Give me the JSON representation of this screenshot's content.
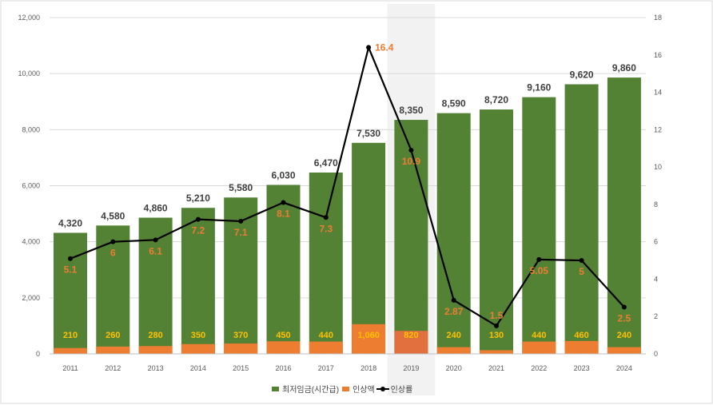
{
  "chart_data": {
    "type": "bar+line",
    "categories": [
      "2011",
      "2012",
      "2013",
      "2014",
      "2015",
      "2016",
      "2017",
      "2018",
      "2019",
      "2020",
      "2021",
      "2022",
      "2023",
      "2024"
    ],
    "series": [
      {
        "name": "최저임금(시간급)",
        "type": "bar",
        "axis": "left",
        "color": "#548235",
        "values": [
          4320,
          4580,
          4860,
          5210,
          5580,
          6030,
          6470,
          7530,
          8350,
          8590,
          8720,
          9160,
          9620,
          9860
        ]
      },
      {
        "name": "인상액",
        "type": "bar",
        "axis": "left",
        "color": "#ED7D31",
        "values": [
          210,
          260,
          280,
          350,
          370,
          450,
          440,
          1060,
          820,
          240,
          130,
          440,
          460,
          240
        ]
      },
      {
        "name": "인상률",
        "type": "line",
        "axis": "right",
        "color": "#000000",
        "values": [
          5.1,
          6,
          6.1,
          7.2,
          7.1,
          8.1,
          7.3,
          16.4,
          10.9,
          2.87,
          1.5,
          5.05,
          5,
          2.5
        ]
      }
    ],
    "value_labels": {
      "wage": [
        "4,320",
        "4,580",
        "4,860",
        "5,210",
        "5,580",
        "6,030",
        "6,470",
        "7,530",
        "8,350",
        "8,590",
        "8,720",
        "9,160",
        "9,620",
        "9,860"
      ],
      "increase": [
        "210",
        "260",
        "280",
        "350",
        "370",
        "450",
        "440",
        "1,060",
        "820",
        "240",
        "130",
        "440",
        "460",
        "240"
      ],
      "rate": [
        "5.1",
        "6",
        "6.1",
        "7.2",
        "7.1",
        "8.1",
        "7.3",
        "16.4",
        "10.9",
        "2.87",
        "1.5",
        "5.05",
        "5",
        "2.5"
      ]
    },
    "left_axis": {
      "ylim": [
        0,
        12000
      ],
      "ticks": [
        "0",
        "2,000",
        "4,000",
        "6,000",
        "8,000",
        "10,000",
        "12,000"
      ]
    },
    "right_axis": {
      "ylim": [
        0,
        18
      ],
      "ticks": [
        "0",
        "2",
        "4",
        "6",
        "8",
        "10",
        "12",
        "14",
        "16",
        "18"
      ]
    },
    "highlight_category": "2019",
    "grid": true,
    "legend_position": "bottom",
    "colors": {
      "rate_label": "#ED7D31",
      "increase_label": "#FFC000",
      "wage_label": "#404040",
      "highlight": "#f2f2f2"
    }
  }
}
